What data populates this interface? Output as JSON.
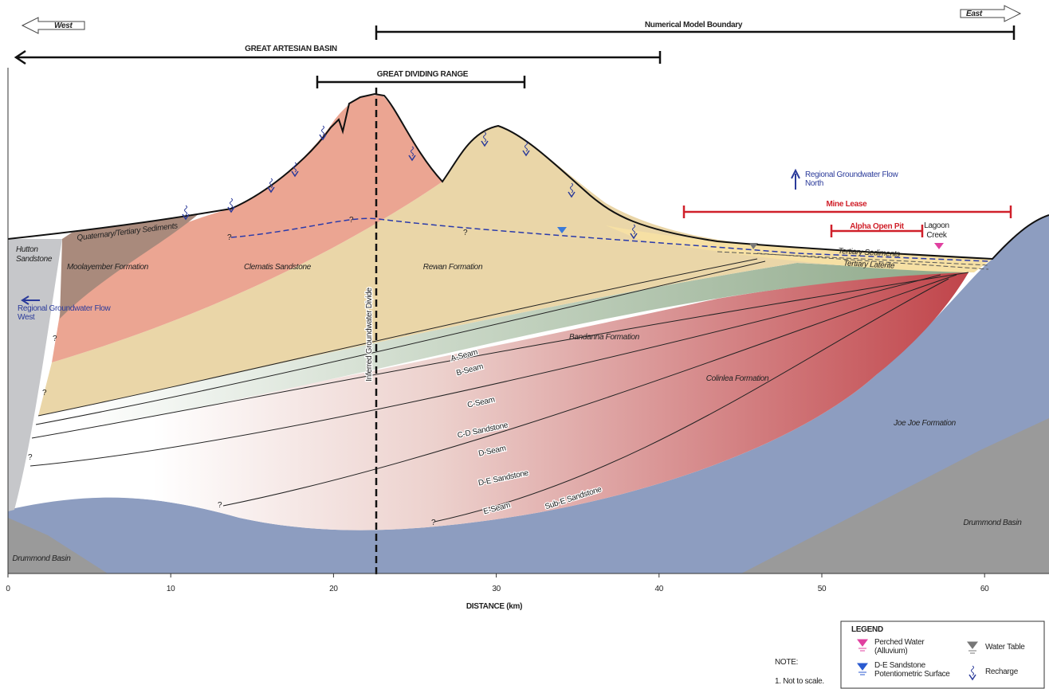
{
  "directions": {
    "west": "West",
    "east": "East"
  },
  "extents": {
    "model_boundary": "Numerical Model Boundary",
    "artesian_basin": "GREAT ARTESIAN BASIN",
    "dividing_range": "GREAT DIVIDING RANGE",
    "mine_lease": "Mine Lease",
    "open_pit": "Alpha Open Pit"
  },
  "creek": [
    "Lagoon",
    "Creek"
  ],
  "flow": {
    "north": [
      "Regional Groundwater Flow",
      "North"
    ],
    "west": [
      "Regional Groundwater Flow",
      "West"
    ]
  },
  "divide": "Inferred Groundwater Divide",
  "formations": {
    "hutton": [
      "Hutton",
      "Sandstone"
    ],
    "quaternary": "Quaternary/Tertiary Sediments",
    "moolayember": "Moolayember Formation",
    "clematis": "Clematis Sandstone",
    "rewan": "Rewan Formation",
    "bandanna": "Bandanna Formation",
    "colinlea": "Colinlea Formation",
    "joe_joe": "Joe Joe Formation",
    "drummond_west": "Drummond Basin",
    "drummond_east": "Drummond Basin",
    "tertiary_sediments": "Tertiary Sediments",
    "tertiary_laterite": "Tertiary Laterite"
  },
  "seams": [
    "A-Seam",
    "B-Seam",
    "C-Seam",
    "C-D Sandstone",
    "D-Seam",
    "D-E Sandstone",
    "E-Seam",
    "Sub-E Sandstone"
  ],
  "uncertain": [
    "?",
    "?",
    "?",
    "?",
    "?",
    "?",
    "?",
    "?"
  ],
  "axis": {
    "title": "DISTANCE (km)",
    "ticks": [
      0,
      10,
      20,
      30,
      40,
      50,
      60
    ]
  },
  "legend": {
    "title": "LEGEND",
    "items": [
      [
        "Perched Water",
        "(Alluvium)"
      ],
      [
        "Water Table"
      ],
      [
        "D-E Sandstone",
        "Potentiometric Surface"
      ],
      [
        "Recharge"
      ]
    ]
  },
  "note": {
    "title": "NOTE:",
    "items": [
      "1. Not to scale."
    ]
  }
}
